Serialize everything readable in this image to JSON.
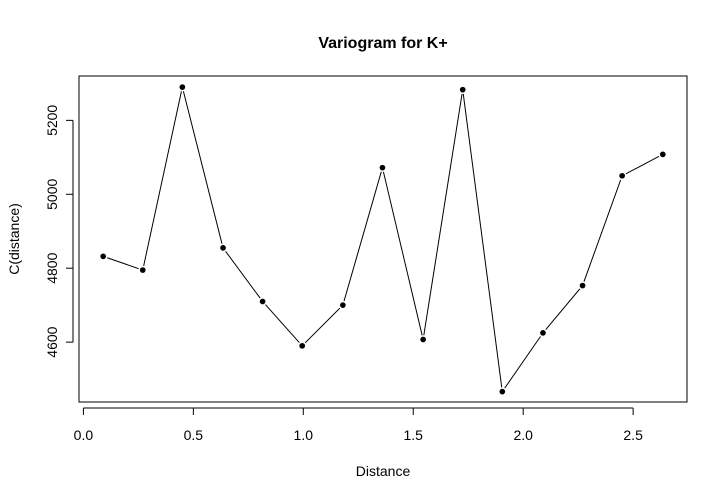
{
  "chart_data": {
    "type": "line",
    "title": "Variogram for K+",
    "xlabel": "Distance",
    "ylabel": "C(distance)",
    "x": [
      0.09,
      0.27,
      0.45,
      0.635,
      0.815,
      0.995,
      1.18,
      1.36,
      1.545,
      1.725,
      1.905,
      2.09,
      2.27,
      2.45,
      2.635
    ],
    "y": [
      4832,
      4795,
      5290,
      4855,
      4710,
      4590,
      4700,
      5072,
      4607,
      5283,
      4466,
      4625,
      4753,
      5050,
      5108
    ],
    "xlim": [
      -0.02,
      2.745
    ],
    "ylim": [
      4438,
      5320
    ],
    "xticks": [
      0.0,
      0.5,
      1.0,
      1.5,
      2.0,
      2.5
    ],
    "xtick_labels": [
      "0.0",
      "0.5",
      "1.0",
      "1.5",
      "2.0",
      "2.5"
    ],
    "yticks": [
      4600,
      4800,
      5000,
      5200
    ],
    "ytick_labels": [
      "4600",
      "4800",
      "5000",
      "5200"
    ],
    "grid": false,
    "colors": {
      "line": "#000000",
      "points": "#000000"
    }
  }
}
